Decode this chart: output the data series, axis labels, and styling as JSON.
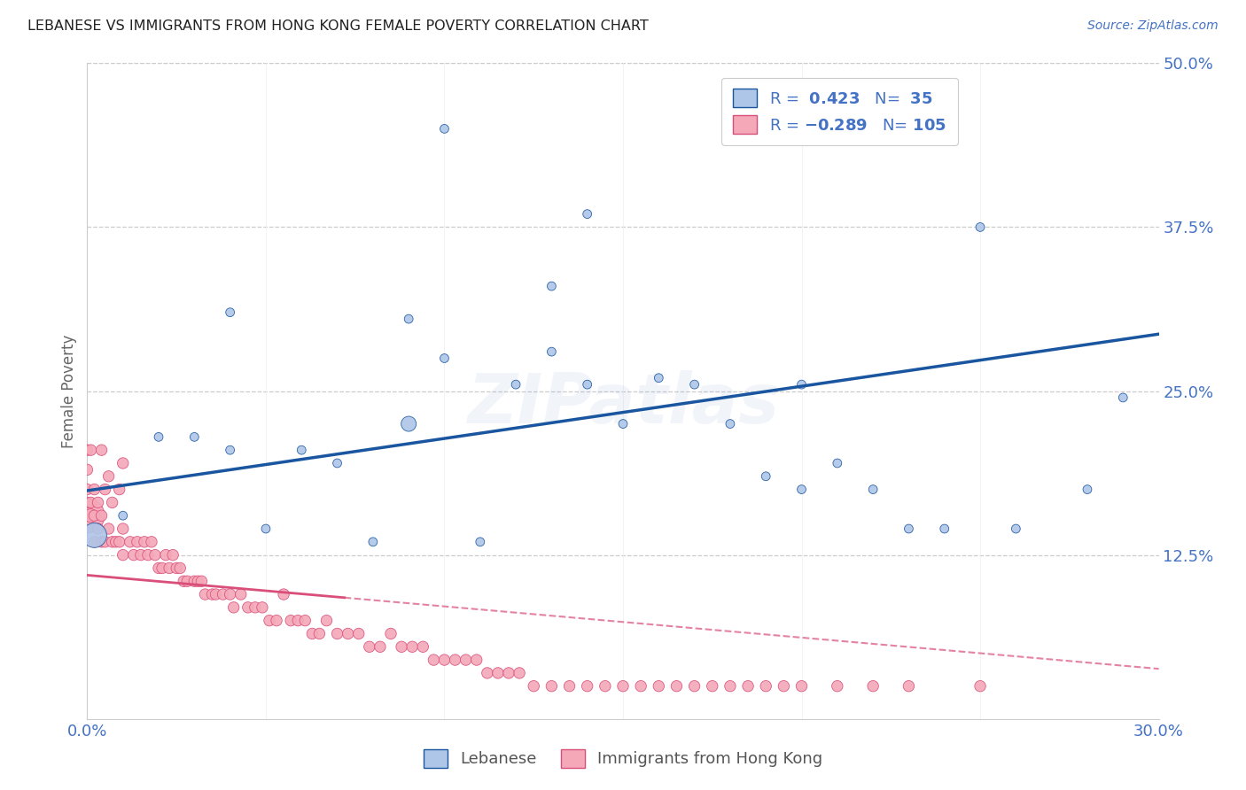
{
  "title": "LEBANESE VS IMMIGRANTS FROM HONG KONG FEMALE POVERTY CORRELATION CHART",
  "source": "Source: ZipAtlas.com",
  "ylabel": "Female Poverty",
  "xlim": [
    0,
    0.3
  ],
  "ylim": [
    0,
    0.5
  ],
  "r_lebanese": 0.423,
  "n_lebanese": 35,
  "r_hk": -0.289,
  "n_hk": 105,
  "legend_label_1": "Lebanese",
  "legend_label_2": "Immigrants from Hong Kong",
  "color_lebanese": "#aec6e8",
  "color_hk": "#f4a8b8",
  "color_line_lebanese": "#1a56a0",
  "color_line_hk": "#d94f7a",
  "watermark": "ZIPatlas",
  "background_color": "#ffffff",
  "blue_scatter_x": [
    0.002,
    0.01,
    0.02,
    0.03,
    0.04,
    0.04,
    0.05,
    0.06,
    0.07,
    0.08,
    0.09,
    0.09,
    0.1,
    0.1,
    0.11,
    0.12,
    0.13,
    0.13,
    0.14,
    0.14,
    0.15,
    0.16,
    0.17,
    0.18,
    0.19,
    0.2,
    0.2,
    0.21,
    0.22,
    0.23,
    0.24,
    0.25,
    0.26,
    0.28,
    0.29
  ],
  "blue_scatter_y": [
    0.14,
    0.155,
    0.215,
    0.215,
    0.205,
    0.31,
    0.145,
    0.205,
    0.195,
    0.135,
    0.225,
    0.305,
    0.275,
    0.45,
    0.135,
    0.255,
    0.28,
    0.33,
    0.255,
    0.385,
    0.225,
    0.26,
    0.255,
    0.225,
    0.185,
    0.175,
    0.255,
    0.195,
    0.175,
    0.145,
    0.145,
    0.375,
    0.145,
    0.175,
    0.245
  ],
  "blue_scatter_size": [
    400,
    50,
    50,
    50,
    50,
    50,
    50,
    50,
    50,
    50,
    150,
    50,
    50,
    50,
    50,
    50,
    50,
    50,
    50,
    50,
    50,
    50,
    50,
    50,
    50,
    50,
    50,
    50,
    50,
    50,
    50,
    50,
    50,
    50,
    50
  ],
  "pink_scatter_x": [
    0.0,
    0.0,
    0.0,
    0.0,
    0.0,
    0.001,
    0.001,
    0.001,
    0.002,
    0.002,
    0.002,
    0.003,
    0.003,
    0.004,
    0.004,
    0.004,
    0.005,
    0.005,
    0.006,
    0.006,
    0.007,
    0.007,
    0.008,
    0.009,
    0.009,
    0.01,
    0.01,
    0.01,
    0.012,
    0.013,
    0.014,
    0.015,
    0.016,
    0.017,
    0.018,
    0.019,
    0.02,
    0.021,
    0.022,
    0.023,
    0.024,
    0.025,
    0.026,
    0.027,
    0.028,
    0.03,
    0.031,
    0.032,
    0.033,
    0.035,
    0.036,
    0.038,
    0.04,
    0.041,
    0.043,
    0.045,
    0.047,
    0.049,
    0.051,
    0.053,
    0.055,
    0.057,
    0.059,
    0.061,
    0.063,
    0.065,
    0.067,
    0.07,
    0.073,
    0.076,
    0.079,
    0.082,
    0.085,
    0.088,
    0.091,
    0.094,
    0.097,
    0.1,
    0.103,
    0.106,
    0.109,
    0.112,
    0.115,
    0.118,
    0.121,
    0.125,
    0.13,
    0.135,
    0.14,
    0.145,
    0.15,
    0.155,
    0.16,
    0.165,
    0.17,
    0.175,
    0.18,
    0.185,
    0.19,
    0.195,
    0.2,
    0.21,
    0.22,
    0.23,
    0.25
  ],
  "pink_scatter_y": [
    0.155,
    0.165,
    0.175,
    0.19,
    0.205,
    0.155,
    0.165,
    0.205,
    0.135,
    0.155,
    0.175,
    0.145,
    0.165,
    0.135,
    0.155,
    0.205,
    0.135,
    0.175,
    0.145,
    0.185,
    0.135,
    0.165,
    0.135,
    0.135,
    0.175,
    0.125,
    0.145,
    0.195,
    0.135,
    0.125,
    0.135,
    0.125,
    0.135,
    0.125,
    0.135,
    0.125,
    0.115,
    0.115,
    0.125,
    0.115,
    0.125,
    0.115,
    0.115,
    0.105,
    0.105,
    0.105,
    0.105,
    0.105,
    0.095,
    0.095,
    0.095,
    0.095,
    0.095,
    0.085,
    0.095,
    0.085,
    0.085,
    0.085,
    0.075,
    0.075,
    0.095,
    0.075,
    0.075,
    0.075,
    0.065,
    0.065,
    0.075,
    0.065,
    0.065,
    0.065,
    0.055,
    0.055,
    0.065,
    0.055,
    0.055,
    0.055,
    0.045,
    0.045,
    0.045,
    0.045,
    0.045,
    0.035,
    0.035,
    0.035,
    0.035,
    0.025,
    0.025,
    0.025,
    0.025,
    0.025,
    0.025,
    0.025,
    0.025,
    0.025,
    0.025,
    0.025,
    0.025,
    0.025,
    0.025,
    0.025,
    0.025,
    0.025,
    0.025,
    0.025,
    0.025
  ],
  "pink_scatter_size": [
    800,
    80,
    80,
    80,
    80,
    120,
    80,
    80,
    80,
    80,
    80,
    80,
    80,
    80,
    80,
    80,
    80,
    80,
    80,
    80,
    80,
    80,
    80,
    80,
    80,
    80,
    80,
    80,
    80,
    80,
    80,
    80,
    80,
    80,
    80,
    80,
    80,
    80,
    80,
    80,
    80,
    80,
    80,
    80,
    80,
    80,
    80,
    80,
    80,
    80,
    80,
    80,
    80,
    80,
    80,
    80,
    80,
    80,
    80,
    80,
    80,
    80,
    80,
    80,
    80,
    80,
    80,
    80,
    80,
    80,
    80,
    80,
    80,
    80,
    80,
    80,
    80,
    80,
    80,
    80,
    80,
    80,
    80,
    80,
    80,
    80,
    80,
    80,
    80,
    80,
    80,
    80,
    80,
    80,
    80,
    80,
    80,
    80,
    80,
    80,
    80,
    80,
    80,
    80,
    80
  ]
}
